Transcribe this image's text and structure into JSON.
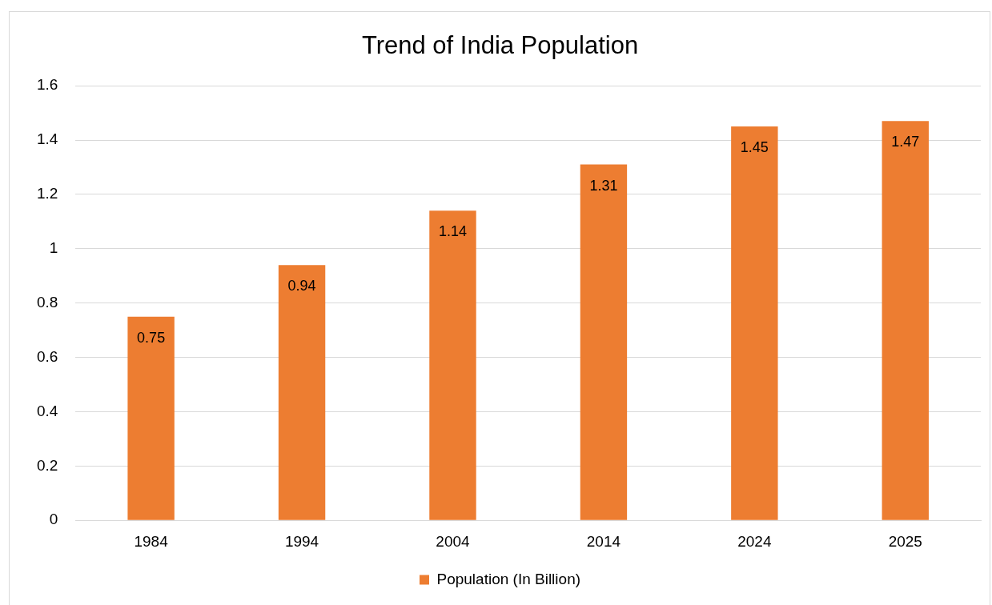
{
  "chart_data": {
    "type": "bar",
    "title": "Trend of India Population",
    "categories": [
      "1984",
      "1994",
      "2004",
      "2014",
      "2024",
      "2025"
    ],
    "series": [
      {
        "name": "Population (In Billion)",
        "color": "#ed7d31",
        "values": [
          0.75,
          0.94,
          1.14,
          1.31,
          1.45,
          1.47
        ]
      }
    ],
    "ylim": [
      0,
      1.6
    ],
    "yticks": [
      0,
      0.2,
      0.4,
      0.6,
      0.8,
      1,
      1.2,
      1.4,
      1.6
    ],
    "grid": "y",
    "legend": "bottom",
    "data_labels": true
  }
}
